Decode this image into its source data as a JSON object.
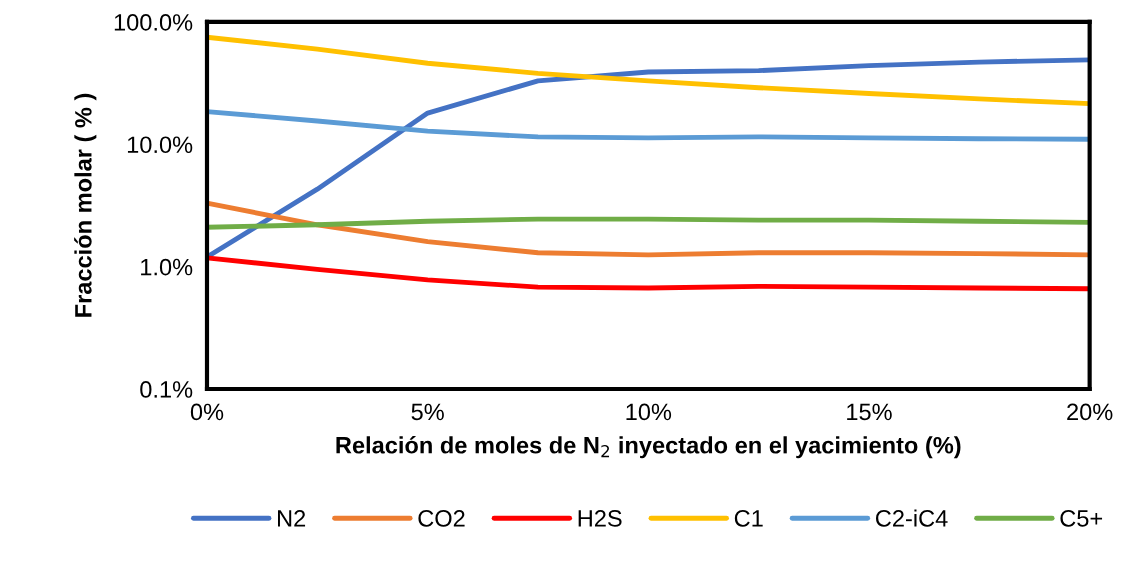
{
  "chart_data": {
    "type": "line",
    "xlabel": "Relación de moles de N$_{2}$ inyectado en el yacimiento (%)",
    "ylabel": "Fracción molar ( % )",
    "x": [
      0,
      2.5,
      5,
      7.5,
      10,
      12.5,
      15,
      17.5,
      20
    ],
    "series": [
      {
        "name": "N2",
        "color": "#4472c4",
        "values": [
          1.2,
          4.3,
          18,
          33,
          39,
          40,
          44,
          47,
          49
        ]
      },
      {
        "name": "CO2",
        "color": "#ed7d31",
        "values": [
          3.3,
          2.2,
          1.6,
          1.3,
          1.25,
          1.3,
          1.3,
          1.28,
          1.25
        ]
      },
      {
        "name": "H2S",
        "color": "#ff0000",
        "values": [
          1.18,
          0.95,
          0.78,
          0.68,
          0.67,
          0.69,
          0.68,
          0.67,
          0.66
        ]
      },
      {
        "name": "C1",
        "color": "#ffc000",
        "values": [
          75,
          60,
          46,
          38,
          33,
          29,
          26,
          23.5,
          21.5
        ]
      },
      {
        "name": "C2-iC4",
        "color": "#5b9bd5",
        "values": [
          18.5,
          15.5,
          12.8,
          11.5,
          11.3,
          11.5,
          11.3,
          11.1,
          11
        ]
      },
      {
        "name": "C5+",
        "color": "#70ad47",
        "values": [
          2.1,
          2.2,
          2.35,
          2.45,
          2.45,
          2.4,
          2.4,
          2.35,
          2.3
        ]
      }
    ],
    "log": "y",
    "xlim": [
      0,
      20
    ],
    "ylim": [
      0.1,
      100
    ],
    "xticks": [
      {
        "value": 0,
        "label": "0%"
      },
      {
        "value": 5,
        "label": "5%"
      },
      {
        "value": 10,
        "label": "10%"
      },
      {
        "value": 15,
        "label": "15%"
      },
      {
        "value": 20,
        "label": "20%"
      }
    ],
    "yticks": [
      {
        "value": 0.1,
        "label": "0.1%"
      },
      {
        "value": 1,
        "label": "1.0%"
      },
      {
        "value": 10,
        "label": "10.0%"
      },
      {
        "value": 100,
        "label": "100.0%"
      }
    ],
    "grid": false,
    "legend": "bottom"
  }
}
